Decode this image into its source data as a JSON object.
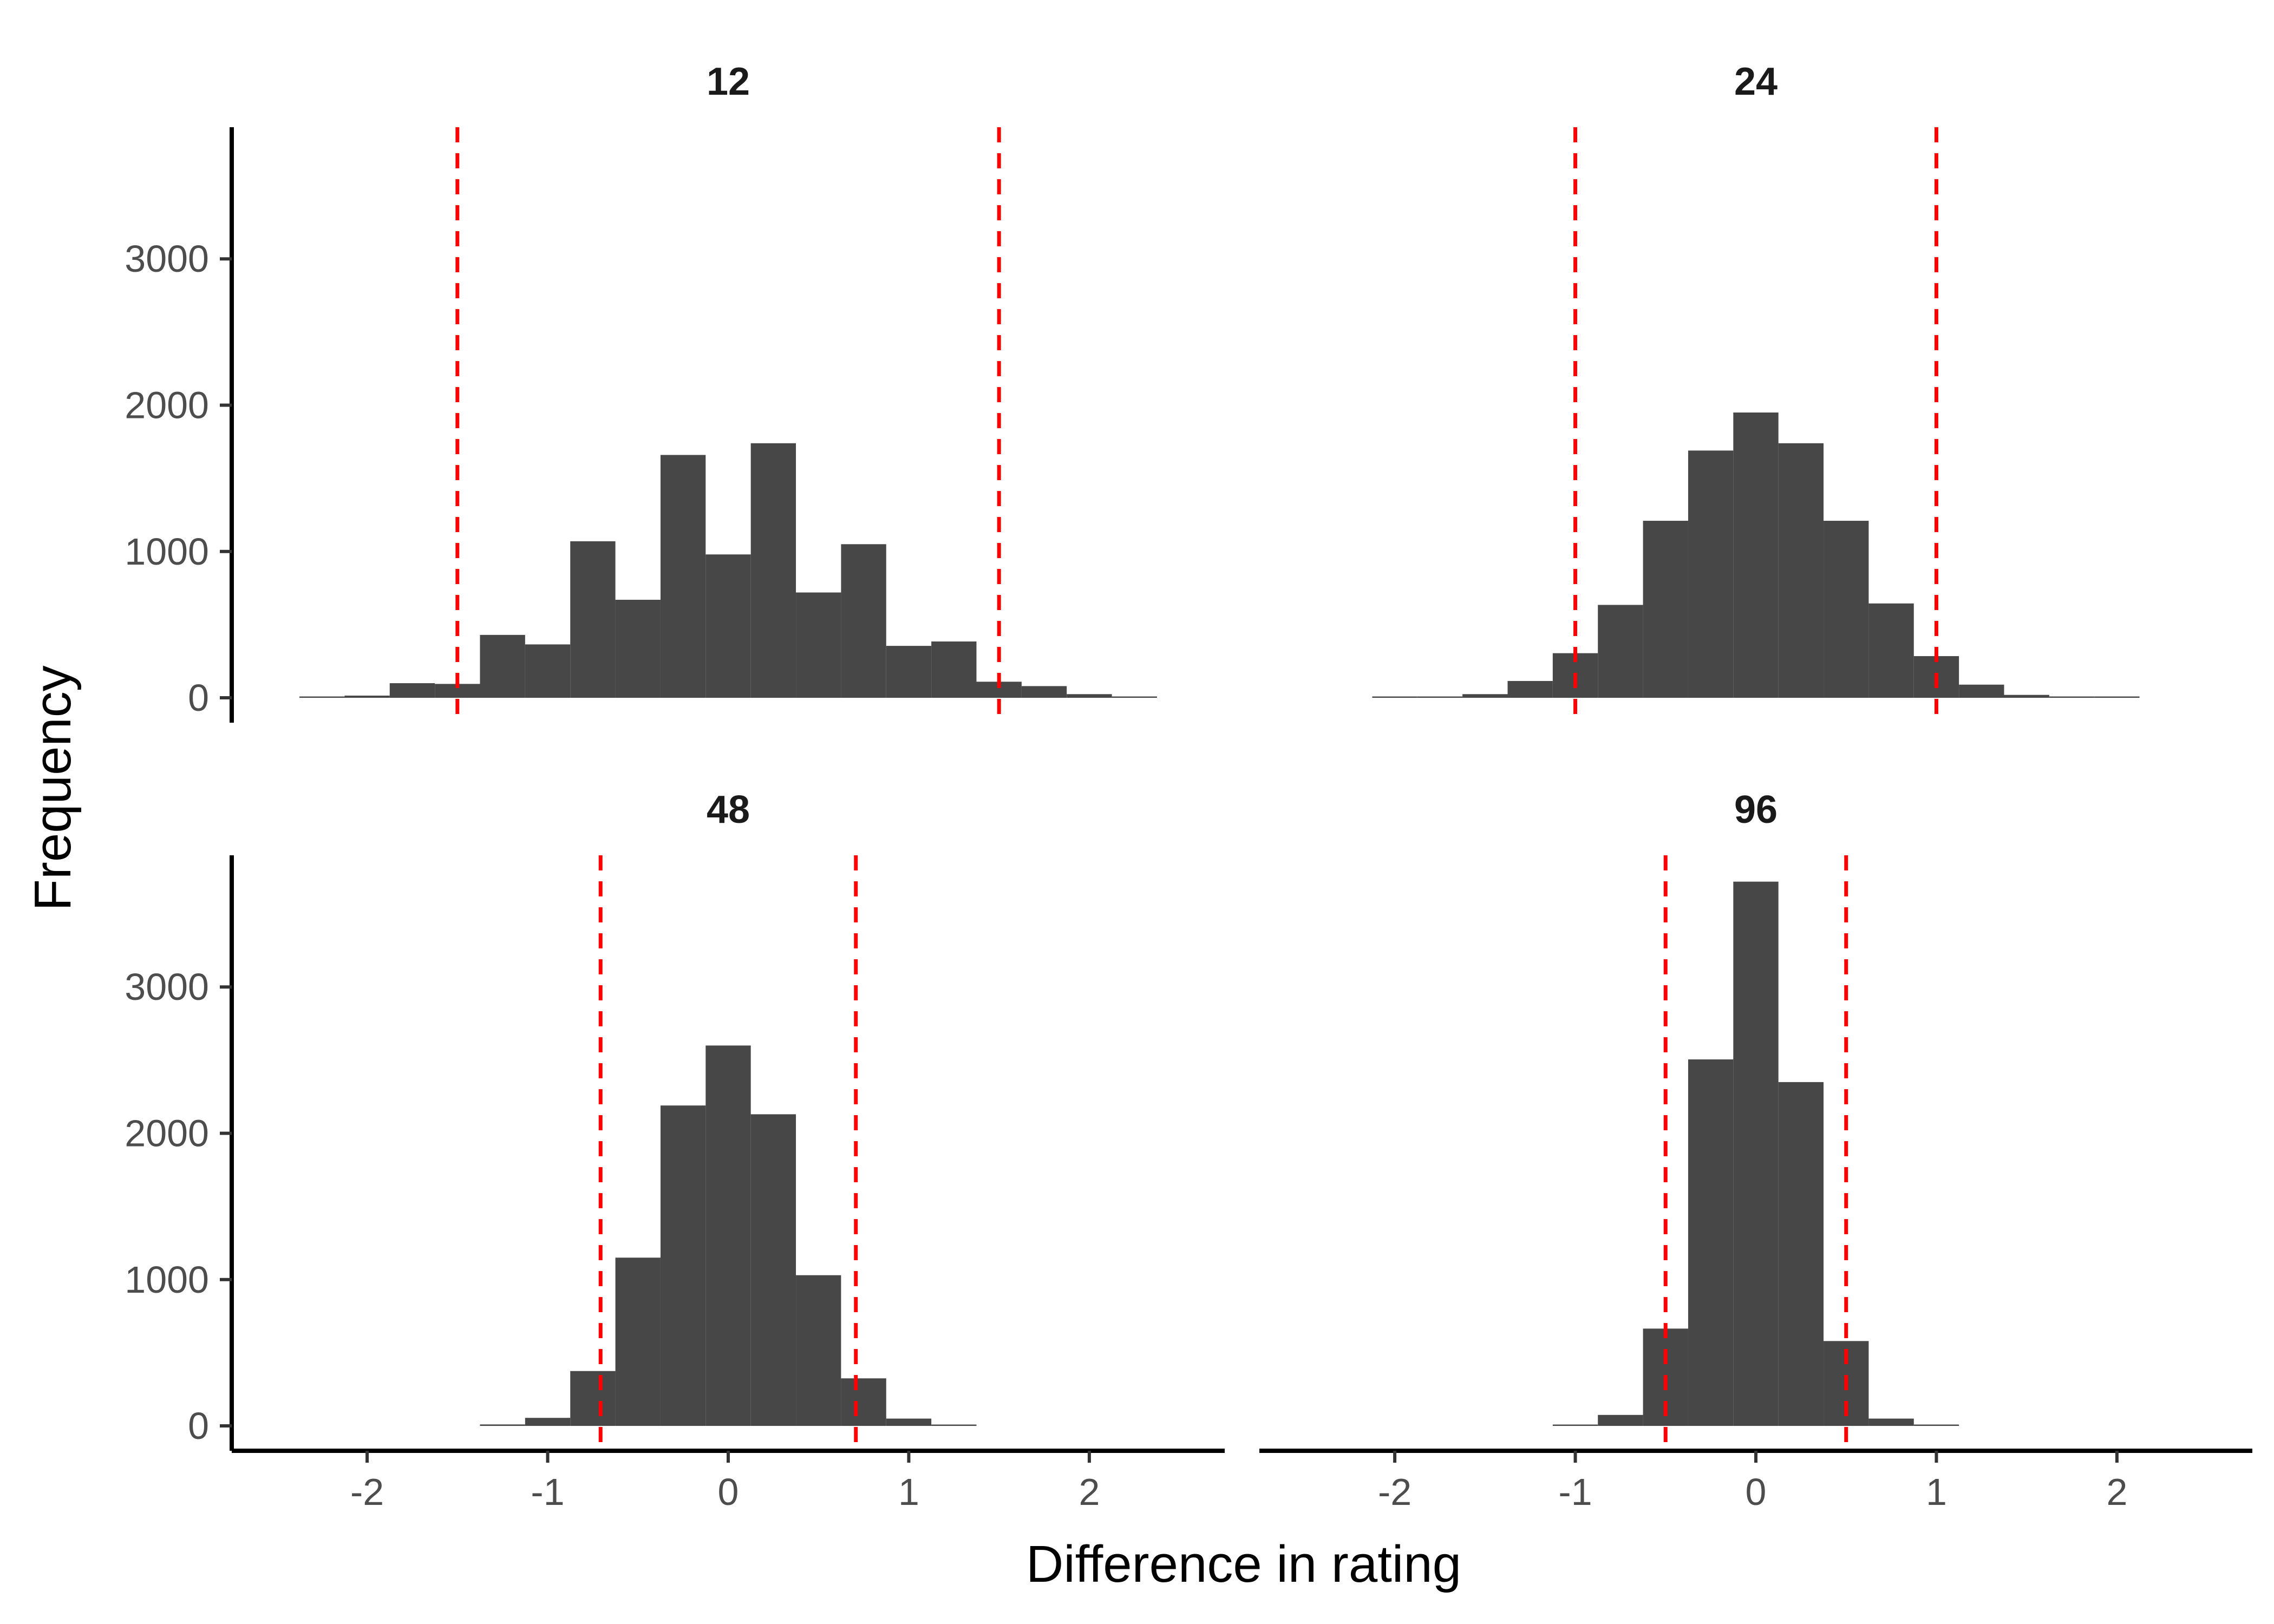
{
  "chart_data": {
    "type": "bar",
    "xlabel": "Difference in rating",
    "ylabel": "Frequency",
    "xlim": [
      -2.75,
      2.75
    ],
    "ylim": [
      -170,
      3900
    ],
    "x_ticks": [
      -2,
      -1,
      0,
      1,
      2
    ],
    "x_tick_labels": [
      "-2",
      "-1",
      "0",
      "1",
      "2"
    ],
    "y_ticks": [
      0,
      1000,
      2000,
      3000
    ],
    "y_tick_labels": [
      "0",
      "1000",
      "2000",
      "3000"
    ],
    "reference_line_color": "#ff0000",
    "bar_color": "#474747",
    "panels": [
      {
        "title": "12",
        "bin_width": 0.25,
        "bin_start": -2.375,
        "counts": [
          5,
          15,
          100,
          95,
          430,
          365,
          1070,
          670,
          1660,
          980,
          1740,
          720,
          1050,
          355,
          385,
          110,
          80,
          25,
          5
        ],
        "reference_lines": [
          -1.5,
          1.5
        ]
      },
      {
        "title": "24",
        "bin_width": 0.25,
        "bin_start": -2.125,
        "counts": [
          2,
          5,
          25,
          115,
          305,
          635,
          1210,
          1690,
          1950,
          1740,
          1210,
          645,
          285,
          90,
          20,
          5,
          2
        ],
        "reference_lines": [
          -1.0,
          1.0
        ]
      },
      {
        "title": "48",
        "bin_width": 0.25,
        "bin_start": -1.375,
        "counts": [
          10,
          55,
          375,
          1150,
          2190,
          2600,
          2130,
          1030,
          325,
          50,
          5
        ],
        "reference_lines": [
          -0.707,
          0.707
        ]
      },
      {
        "title": "96",
        "bin_width": 0.25,
        "bin_start": -1.125,
        "counts": [
          5,
          75,
          665,
          2505,
          3720,
          2350,
          580,
          50,
          5
        ],
        "reference_lines": [
          -0.5,
          0.5
        ]
      }
    ]
  }
}
